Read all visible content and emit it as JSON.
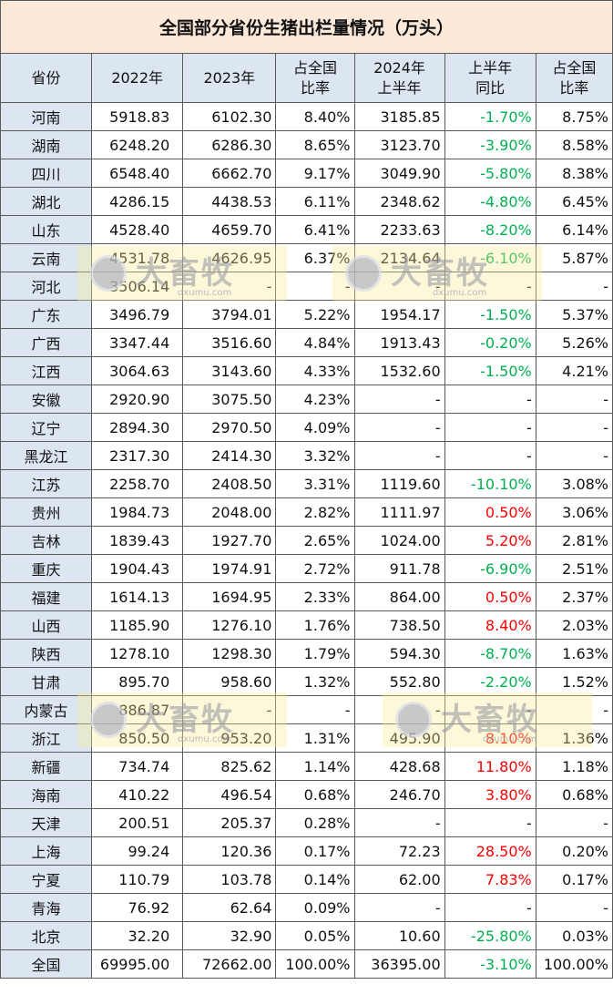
{
  "title": "全国部分省份生猪出栏量情况（万头）",
  "watermark": {
    "logo": "大畜牧",
    "site": "dxumu.com"
  },
  "table": {
    "header": [
      "省份",
      "2022年",
      "2023年",
      "占全国\n比率",
      "2024年\n上半年",
      "上半年\n同比",
      "占全国\n比率"
    ],
    "rows": [
      [
        "河南",
        "5918.83",
        "6102.30",
        "8.40%",
        "3185.85",
        "-1.70%",
        "8.75%"
      ],
      [
        "湖南",
        "6248.20",
        "6286.30",
        "8.65%",
        "3123.70",
        "-3.90%",
        "8.58%"
      ],
      [
        "四川",
        "6548.40",
        "6662.70",
        "9.17%",
        "3049.90",
        "-5.80%",
        "8.38%"
      ],
      [
        "湖北",
        "4286.15",
        "4438.53",
        "6.11%",
        "2348.62",
        "-4.80%",
        "6.45%"
      ],
      [
        "山东",
        "4528.40",
        "4659.70",
        "6.41%",
        "2233.63",
        "-8.20%",
        "6.14%"
      ],
      [
        "云南",
        "4531.78",
        "4626.95",
        "6.37%",
        "2134.64",
        "-6.10%",
        "5.87%"
      ],
      [
        "河北",
        "3506.14",
        "-",
        "-",
        "-",
        "-",
        "-"
      ],
      [
        "广东",
        "3496.79",
        "3794.01",
        "5.22%",
        "1954.17",
        "-1.50%",
        "5.37%"
      ],
      [
        "广西",
        "3347.44",
        "3516.60",
        "4.84%",
        "1913.43",
        "-0.20%",
        "5.26%"
      ],
      [
        "江西",
        "3064.63",
        "3143.60",
        "4.33%",
        "1532.60",
        "-1.50%",
        "4.21%"
      ],
      [
        "安徽",
        "2920.90",
        "3075.50",
        "4.23%",
        "-",
        "-",
        "-"
      ],
      [
        "辽宁",
        "2894.30",
        "2970.50",
        "4.09%",
        "-",
        "-",
        "-"
      ],
      [
        "黑龙江",
        "2317.30",
        "2414.30",
        "3.32%",
        "-",
        "-",
        "-"
      ],
      [
        "江苏",
        "2258.70",
        "2408.50",
        "3.31%",
        "1119.60",
        "-10.10%",
        "3.08%"
      ],
      [
        "贵州",
        "1984.73",
        "2048.00",
        "2.82%",
        "1111.97",
        "0.50%",
        "3.06%"
      ],
      [
        "吉林",
        "1839.43",
        "1927.70",
        "2.65%",
        "1024.00",
        "5.20%",
        "2.81%"
      ],
      [
        "重庆",
        "1904.43",
        "1974.91",
        "2.72%",
        "911.78",
        "-6.90%",
        "2.51%"
      ],
      [
        "福建",
        "1614.13",
        "1694.95",
        "2.33%",
        "864.00",
        "0.50%",
        "2.37%"
      ],
      [
        "山西",
        "1185.90",
        "1276.10",
        "1.76%",
        "738.50",
        "8.40%",
        "2.03%"
      ],
      [
        "陕西",
        "1278.10",
        "1298.30",
        "1.79%",
        "594.30",
        "-8.70%",
        "1.63%"
      ],
      [
        "甘肃",
        "895.70",
        "958.60",
        "1.32%",
        "552.80",
        "-2.20%",
        "1.52%"
      ],
      [
        "内蒙古",
        "886.87",
        "-",
        "-",
        "-",
        "-",
        "-"
      ],
      [
        "浙江",
        "850.50",
        "953.20",
        "1.31%",
        "495.90",
        "8.10%",
        "1.36%"
      ],
      [
        "新疆",
        "734.74",
        "825.62",
        "1.14%",
        "428.68",
        "11.80%",
        "1.18%"
      ],
      [
        "海南",
        "410.22",
        "496.54",
        "0.68%",
        "246.70",
        "3.80%",
        "0.68%"
      ],
      [
        "天津",
        "200.51",
        "205.37",
        "0.28%",
        "-",
        "-",
        "-"
      ],
      [
        "上海",
        "99.24",
        "120.36",
        "0.17%",
        "72.23",
        "28.50%",
        "0.20%"
      ],
      [
        "宁夏",
        "110.79",
        "103.78",
        "0.14%",
        "62.00",
        "7.83%",
        "0.17%"
      ],
      [
        "青海",
        "76.92",
        "62.64",
        "0.09%",
        "-",
        "-",
        "-"
      ],
      [
        "北京",
        "32.20",
        "32.90",
        "0.05%",
        "10.60",
        "-25.80%",
        "0.03%"
      ],
      [
        "全国",
        "69995.00",
        "72662.00",
        "100.00%",
        "36395.00",
        "-3.10%",
        "100.00%"
      ]
    ]
  }
}
